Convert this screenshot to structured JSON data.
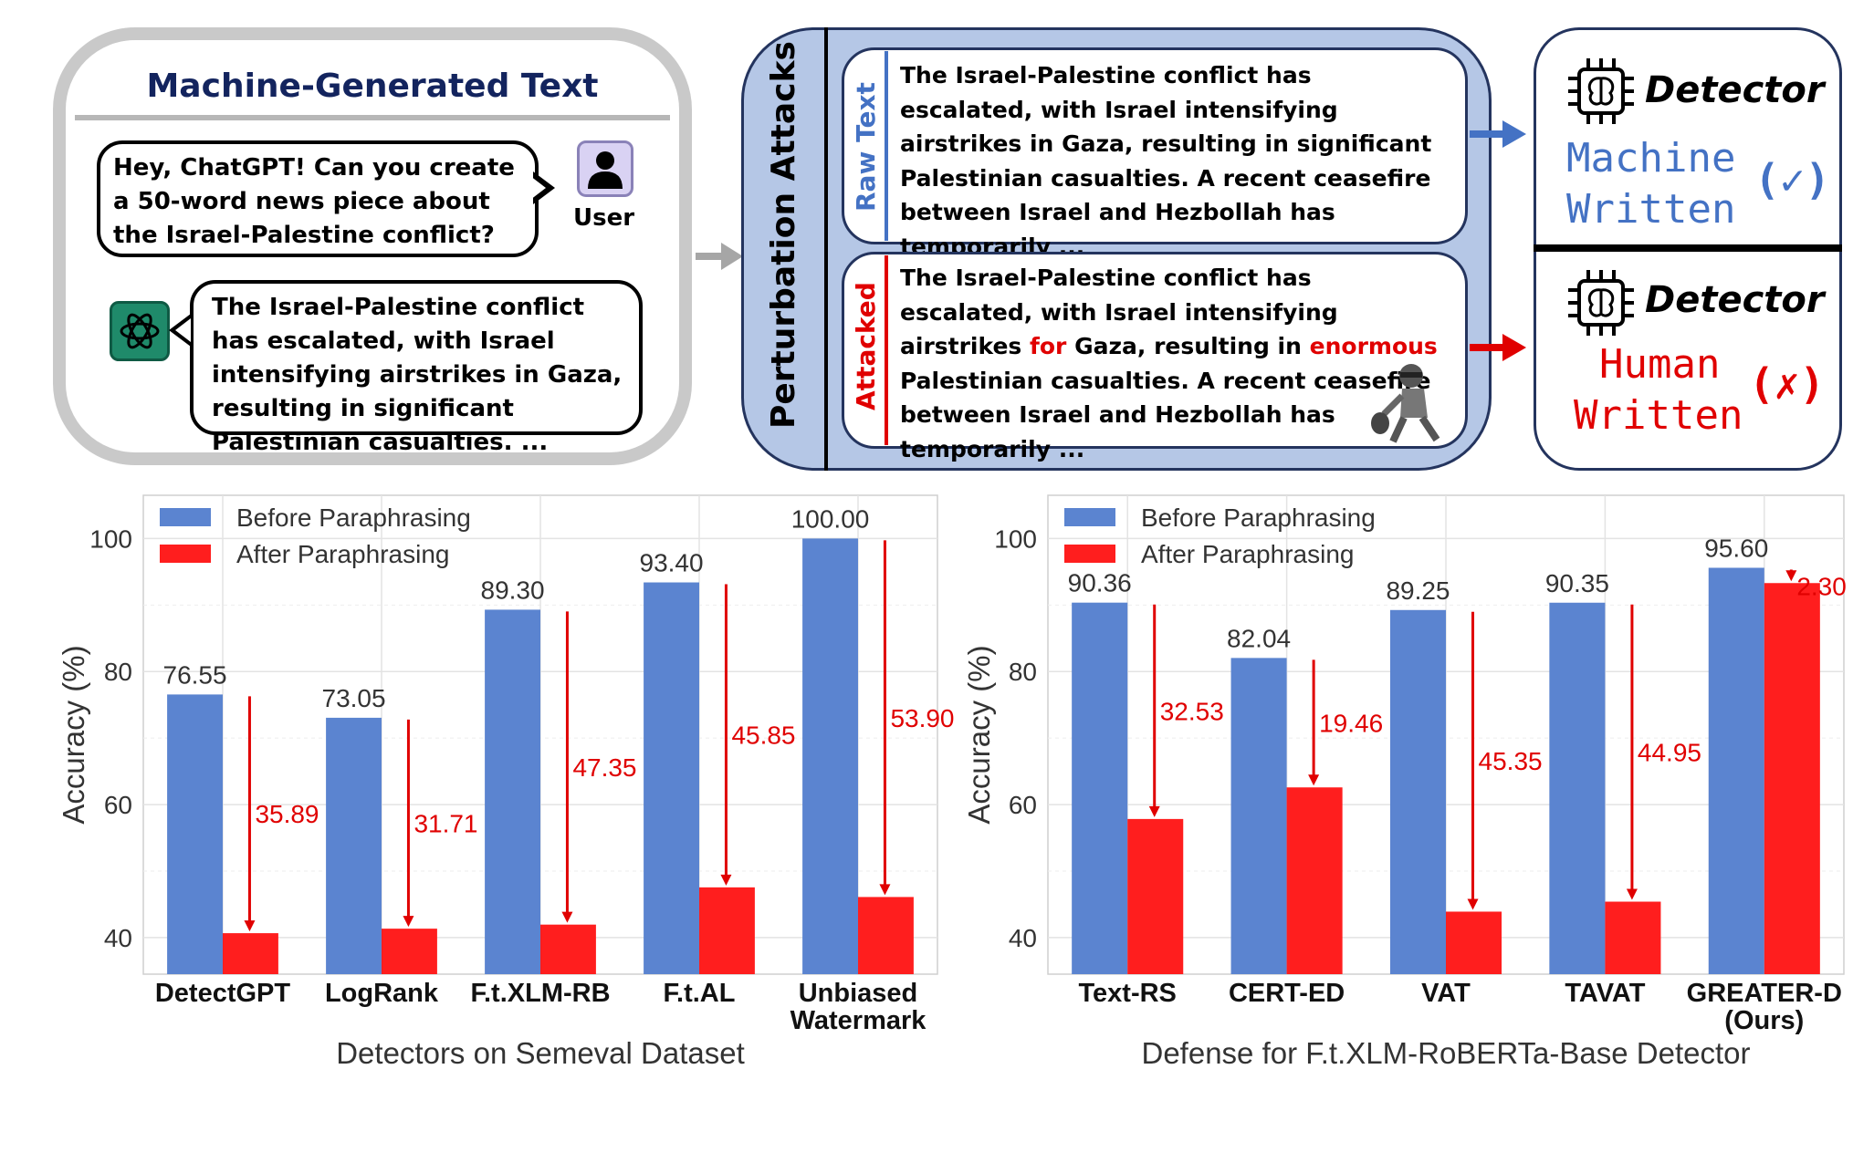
{
  "top": {
    "mgt_title": "Machine-Generated Text",
    "user_prompt": "Hey, ChatGPT!  Can you create a 50-word news piece about the Israel-Palestine conflict?",
    "user_label": "User",
    "gpt_response": "The Israel-Palestine conflict has escalated, with Israel intensifying airstrikes in Gaza, resulting in significant Palestinian casualties. ...",
    "perturbation_title": "Perturbation Attacks",
    "raw_tag": "Raw Text",
    "raw_text": "The Israel-Palestine conflict has escalated, with Israel intensifying airstrikes in Gaza, resulting in significant Palestinian casualties. A recent ceasefire between Israel and Hezbollah has temporarily ...",
    "attacked_tag": "Attacked",
    "attacked_text": {
      "p1": "The Israel-Palestine conflict has escalated, with Israel intensifying airstrikes ",
      "w1": "for",
      "p2": " Gaza, resulting in ",
      "w2": "enormous",
      "p3": " Palestinian casualties. A recent ceasefire between Israel and Hezbollah has temporarily ..."
    },
    "detector_label": "Detector",
    "result_machine_l1": "Machine",
    "result_machine_l2": "Written",
    "result_machine_mark": "(✓)",
    "result_human_l1": "Human",
    "result_human_l2": "Written",
    "result_human_mark": "(✗)",
    "colors": {
      "blue": "#4472c4",
      "red": "#e00000",
      "navy": "#13245e",
      "panel": "#b5c7e6"
    },
    "icons": [
      "user-icon",
      "chatgpt-icon",
      "brain-chip-icon",
      "thief-icon"
    ]
  },
  "chart_data": [
    {
      "type": "bar",
      "categories": [
        "DetectGPT",
        "LogRank",
        "F.t.XLM-RB",
        "F.t.AL",
        "Unbiased Watermark"
      ],
      "series": [
        {
          "name": "Before Paraphrasing",
          "values": [
            76.55,
            73.05,
            89.3,
            93.4,
            100.0
          ],
          "color": "#5b84d0"
        },
        {
          "name": "After Paraphrasing",
          "values": [
            40.66,
            41.34,
            41.95,
            47.55,
            46.1
          ],
          "color": "#ff1e1e"
        }
      ],
      "value_labels": [
        "76.55",
        "73.05",
        "89.30",
        "93.40",
        "100.00"
      ],
      "drops": [
        "35.89",
        "31.71",
        "47.35",
        "45.85",
        "53.90"
      ],
      "xlabel": "Detectors on Semeval Dataset",
      "ylabel": "Accuracy (%)",
      "yticks": [
        40,
        60,
        80,
        100
      ],
      "ylim": [
        34.5,
        106.5
      ],
      "grid": true,
      "legend": "top-left"
    },
    {
      "type": "bar",
      "categories": [
        "Text-RS",
        "CERT-ED",
        "VAT",
        "TAVAT",
        "GREATER-D (Ours)"
      ],
      "series": [
        {
          "name": "Before Paraphrasing",
          "values": [
            90.36,
            82.04,
            89.25,
            90.35,
            95.6
          ],
          "color": "#5b84d0"
        },
        {
          "name": "After Paraphrasing",
          "values": [
            57.83,
            62.58,
            43.9,
            45.4,
            93.3
          ],
          "color": "#ff1e1e"
        }
      ],
      "value_labels": [
        "90.36",
        "82.04",
        "89.25",
        "90.35",
        "95.60"
      ],
      "drops": [
        "32.53",
        "19.46",
        "45.35",
        "44.95",
        "2.30"
      ],
      "xlabel": "Defense for F.t.XLM-RoBERTa-Base Detector",
      "ylabel": "Accuracy (%)",
      "yticks": [
        40,
        60,
        80,
        100
      ],
      "ylim": [
        34.5,
        106.5
      ],
      "grid": true,
      "legend": "top-left"
    }
  ]
}
